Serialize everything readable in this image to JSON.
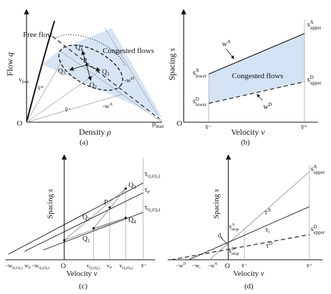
{
  "panel_a": {
    "caption": "(a)",
    "y_label": "Flow",
    "y_var": "q",
    "x_label": "Density",
    "x_var": "ρ",
    "origin": "O",
    "rho_max": "ρ",
    "rho_max_sub": "max",
    "v_free": "v",
    "v_free_sub": "free",
    "free_flow": "Free flow",
    "congested": "Congested flows",
    "v_plus": "v̄⁺",
    "v_minus": "v̄⁻",
    "w_D": "-w",
    "w_D_sup": "D",
    "w_A": "-w",
    "w_A_sup": "A",
    "P": "P",
    "Q1": "Q",
    "Q1_sub": "1",
    "Q2": "Q",
    "Q2_sub": "2",
    "Q3": "Q",
    "Q3_sub": "3",
    "Q4": "Q",
    "Q4_sub": "4"
  },
  "panel_b": {
    "caption": "(b)",
    "y_label": "Spacing",
    "y_var": "s",
    "x_label": "Velocity",
    "x_var": "v",
    "origin": "O",
    "congested": "Congested flows",
    "wA": "w",
    "wA_sup": "A",
    "wD": "w",
    "wD_sup": "D",
    "s_upper_A": "s",
    "s_upper_A_sup": "A",
    "s_upper_A_sub": "upper",
    "s_lower_A": "s",
    "s_lower_A_sup": "A",
    "s_lower_A_sub": "lower",
    "s_upper_D": "s",
    "s_upper_D_sup": "D",
    "s_upper_D_sub": "upper",
    "s_lower_D": "s",
    "s_lower_D_sup": "D",
    "s_lower_D_sub": "lower",
    "v_minus": "v̄⁻",
    "v_plus": "v̄⁺"
  },
  "panel_c": {
    "caption": "(c)",
    "y_label": "Spacing",
    "y_var": "s",
    "x_label": "Velocity",
    "x_var": "v",
    "origin": "O",
    "tau_q1": "τ",
    "tau_q1_sub": "Q₁(Q₃)",
    "tau_p": "τ",
    "tau_p_sub": "P",
    "tau_q2": "τ",
    "tau_q2_sub": "Q₂(Q₄)",
    "Q1": "Q",
    "Q1_sub": "1",
    "Q2": "Q",
    "Q2_sub": "2",
    "Q3": "Q",
    "Q3_sub": "3",
    "Q4": "Q",
    "Q4_sub": "4",
    "P": "P",
    "x_w1": "−w",
    "x_w1_sub": "Q₁(Q₃)",
    "x_wp": "w",
    "x_wp_sub": "P",
    "x_w2": "−w",
    "x_w2_sub": "Q₂(Q₄)",
    "x_vq2": "v",
    "x_vq2_sub": "Q₁(Q₂)",
    "x_vp": "v",
    "x_vp_sub": "P",
    "x_vq4": "v",
    "x_vq4_sub": "Q₃(Q₄)",
    "x_vplus": "v̄⁺"
  },
  "panel_d": {
    "caption": "(d)",
    "y_label": "Spacing",
    "y_var": "s",
    "x_label": "Velocity",
    "x_var": "v",
    "origin": "O",
    "s_upper_A": "s",
    "s_upper_A_sup": "A",
    "s_upper_A_sub": "upper",
    "s_upper_D": "s",
    "s_upper_D_sup": "D",
    "s_upper_D_sub": "upper",
    "s_stop_A": "s",
    "s_stop_A_sup": "A",
    "s_stop_A_sub": "stop",
    "s_stop_D": "s",
    "s_stop_D_sup": "D",
    "s_stop_D_sub": "stop",
    "d_i": "d",
    "d_i_sub": "i",
    "tau_A": "τ",
    "tau_A_sup": "A",
    "tau_i": "τ",
    "tau_i_sub": "i",
    "tau_D": "τ",
    "tau_D_sup": "D",
    "x_wD": "−w",
    "x_wD_sup": "D",
    "x_wi": "−w",
    "x_wi_sub": "i",
    "x_wA": "−w",
    "x_wA_sup": "A",
    "x_vminus": "v̄⁻",
    "x_vplus": "v̄⁺"
  }
}
